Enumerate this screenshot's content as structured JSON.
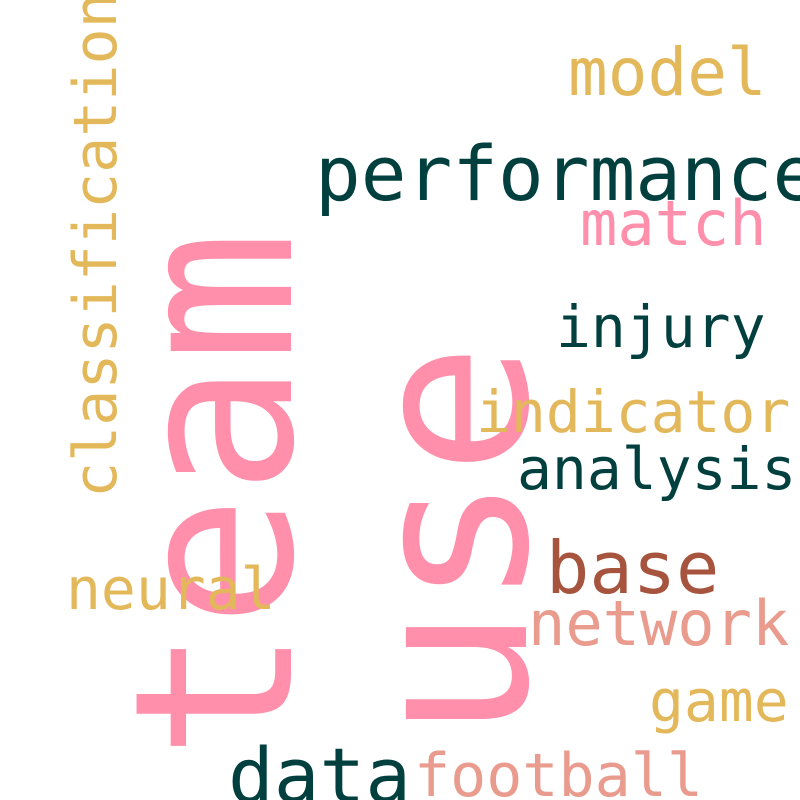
{
  "words": {
    "team": "team",
    "use": "use",
    "performance": "performance",
    "model": "model",
    "match": "match",
    "injury": "injury",
    "classification": "classification",
    "indicator": "indicator",
    "analysis": "analysis",
    "base": "base",
    "neural": "neural",
    "network": "network",
    "game": "game",
    "data": "data",
    "football": "football"
  },
  "colors": {
    "pink": "#ff8fab",
    "teal": "#02403f",
    "gold": "#e3b85a",
    "rust": "#a6543d",
    "salmon": "#e99b8e",
    "background": "#ffffff"
  }
}
